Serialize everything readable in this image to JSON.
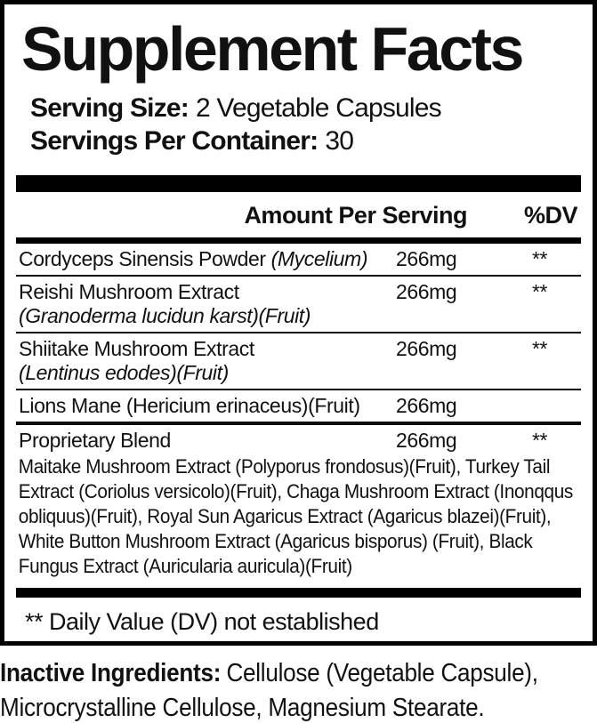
{
  "panel": {
    "title": "Supplement Facts",
    "serving_size": {
      "label": "Serving Size:",
      "value": "2 Vegetable Capsules"
    },
    "servings_per_container": {
      "label": "Servings Per Container:",
      "value": "30"
    },
    "columns": {
      "amount": "Amount Per Serving",
      "dv": "%DV"
    },
    "rows": [
      {
        "name": "Cordyceps Sinensis Powder",
        "name_italic": "(Mycelium)",
        "amount": "266mg",
        "dv": "**"
      },
      {
        "name": "Reishi Mushroom Extract",
        "sub_italic": "(Granoderma lucidun karst)(Fruit)",
        "amount": "266mg",
        "dv": "**"
      },
      {
        "name": "Shiitake Mushroom Extract",
        "sub_italic": "(Lentinus edodes)(Fruit)",
        "amount": "266mg",
        "dv": "**"
      },
      {
        "name": "Lions Mane (Hericium erinaceus)(Fruit)",
        "amount": "266mg",
        "dv": ""
      },
      {
        "name": "Proprietary Blend",
        "amount": "266mg",
        "dv": "**",
        "description": "Maitake Mushroom Extract (Polyporus frondosus)(Fruit), Turkey Tail Extract (Coriolus versicolo)(Fruit), Chaga Mushroom Extract (Inonqqus obliquus)(Fruit), Royal Sun Agaricus Extract (Agaricus blazei)(Fruit), White Button Mushroom Extract (Agaricus bisporus) (Fruit), Black Fungus Extract (Auricularia auricula)(Fruit)"
      }
    ],
    "footnote": "** Daily Value (DV) not established"
  },
  "inactive_ingredients": {
    "label": "Inactive Ingredients:",
    "value": "Cellulose (Vegetable Capsule), Microcrystalline Cellulose, Magnesium Stearate."
  },
  "colors": {
    "text": "#111111",
    "divider": "#000000",
    "background": "#ffffff"
  }
}
